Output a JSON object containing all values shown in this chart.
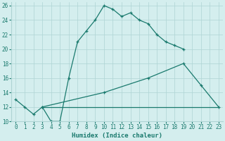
{
  "line1_x": [
    0,
    1,
    2,
    3,
    4,
    5,
    6,
    7,
    8,
    9,
    10,
    11,
    12,
    13,
    14,
    15,
    16,
    17,
    18,
    19
  ],
  "line1_y": [
    13,
    12,
    11,
    12,
    10,
    10,
    16,
    21,
    22.5,
    24,
    26,
    25.5,
    24.5,
    25,
    24,
    23.5,
    22,
    21,
    20.5,
    20
  ],
  "line2_x": [
    3,
    10,
    15,
    19,
    21,
    23
  ],
  "line2_y": [
    12,
    14,
    16,
    18,
    15,
    12
  ],
  "line3_x": [
    3,
    20,
    23
  ],
  "line3_y": [
    12,
    12,
    12
  ],
  "line_color": "#1a7a6e",
  "bg_color": "#d4eeee",
  "grid_color": "#aed4d4",
  "xlabel": "Humidex (Indice chaleur)",
  "xlim": [
    -0.5,
    23.5
  ],
  "ylim": [
    10,
    26.5
  ],
  "xticks": [
    0,
    1,
    2,
    3,
    4,
    5,
    6,
    7,
    8,
    9,
    10,
    11,
    12,
    13,
    14,
    15,
    16,
    17,
    18,
    19,
    20,
    21,
    22,
    23
  ],
  "yticks": [
    10,
    12,
    14,
    16,
    18,
    20,
    22,
    24,
    26
  ],
  "xlabel_fontsize": 6.5,
  "tick_fontsize": 5.5,
  "lw": 0.9,
  "marker_size": 3.5,
  "marker_ew": 0.9
}
